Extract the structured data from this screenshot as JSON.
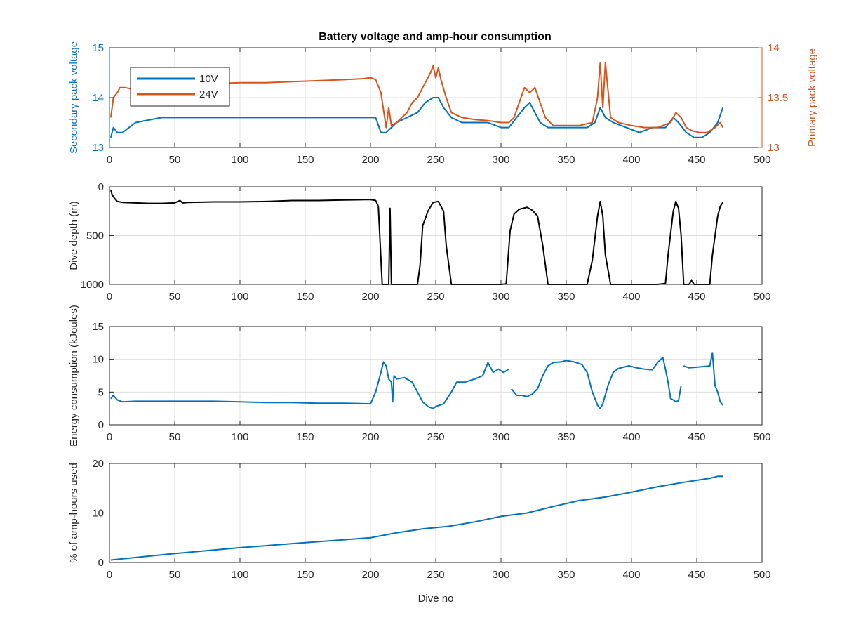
{
  "figure": {
    "title": "Battery voltage and amp-hour consumption"
  },
  "colors": {
    "blue": "#0072BD",
    "orange": "#D95319",
    "black": "#000000"
  },
  "chart_data": [
    {
      "type": "line",
      "title": "Battery voltage and amp-hour consumption",
      "xlabel": "",
      "ylabel": "Secondary pack voltage",
      "ylabel_right": "Primary pack voltage",
      "xlim": [
        0,
        500
      ],
      "ylim": [
        13,
        15
      ],
      "ylim_right": [
        13,
        14
      ],
      "xticks": [
        0,
        50,
        100,
        150,
        200,
        250,
        300,
        350,
        400,
        450,
        500
      ],
      "yticks": [
        13,
        14,
        15
      ],
      "yticks_right": [
        13,
        13.5,
        14
      ],
      "grid": true,
      "legend": "top-left",
      "series": [
        {
          "name": "10V",
          "axis": "left",
          "color": "#0072BD",
          "x": [
            1,
            3,
            6,
            10,
            20,
            40,
            60,
            80,
            100,
            120,
            140,
            160,
            180,
            200,
            204,
            208,
            212,
            216,
            220,
            228,
            236,
            242,
            248,
            252,
            256,
            262,
            270,
            280,
            290,
            300,
            306,
            312,
            318,
            322,
            326,
            330,
            336,
            346,
            356,
            366,
            372,
            376,
            380,
            386,
            396,
            406,
            416,
            426,
            432,
            436,
            442,
            448,
            454,
            460,
            466,
            470
          ],
          "y": [
            13.2,
            13.4,
            13.3,
            13.3,
            13.5,
            13.6,
            13.6,
            13.6,
            13.6,
            13.6,
            13.6,
            13.6,
            13.6,
            13.6,
            13.6,
            13.3,
            13.3,
            13.4,
            13.5,
            13.6,
            13.7,
            13.9,
            14.0,
            14.0,
            13.8,
            13.6,
            13.5,
            13.5,
            13.5,
            13.4,
            13.4,
            13.6,
            13.8,
            13.9,
            13.7,
            13.5,
            13.4,
            13.4,
            13.4,
            13.4,
            13.5,
            13.8,
            13.6,
            13.5,
            13.4,
            13.3,
            13.4,
            13.4,
            13.6,
            13.5,
            13.3,
            13.2,
            13.2,
            13.3,
            13.5,
            13.8
          ]
        },
        {
          "name": "24V",
          "axis": "right",
          "color": "#D95319",
          "x": [
            1,
            3,
            6,
            8,
            12,
            20,
            40,
            50,
            60,
            80,
            100,
            120,
            140,
            160,
            180,
            195,
            200,
            204,
            208,
            212,
            214,
            216,
            220,
            224,
            228,
            232,
            236,
            242,
            246,
            248,
            250,
            252,
            254,
            258,
            262,
            270,
            280,
            290,
            300,
            306,
            310,
            314,
            318,
            322,
            326,
            330,
            334,
            340,
            350,
            360,
            370,
            374,
            376,
            378,
            380,
            384,
            390,
            400,
            410,
            420,
            430,
            434,
            438,
            442,
            446,
            452,
            458,
            464,
            468,
            470
          ],
          "y": [
            13.3,
            13.5,
            13.55,
            13.6,
            13.6,
            13.58,
            13.59,
            13.6,
            13.6,
            13.64,
            13.65,
            13.65,
            13.66,
            13.67,
            13.68,
            13.69,
            13.7,
            13.68,
            13.55,
            13.2,
            13.4,
            13.22,
            13.25,
            13.3,
            13.35,
            13.45,
            13.5,
            13.65,
            13.75,
            13.82,
            13.7,
            13.8,
            13.68,
            13.5,
            13.35,
            13.3,
            13.28,
            13.27,
            13.25,
            13.25,
            13.3,
            13.45,
            13.6,
            13.55,
            13.6,
            13.45,
            13.3,
            13.22,
            13.22,
            13.22,
            13.25,
            13.5,
            13.85,
            13.4,
            13.85,
            13.3,
            13.25,
            13.22,
            13.2,
            13.2,
            13.25,
            13.35,
            13.3,
            13.2,
            13.17,
            13.15,
            13.15,
            13.2,
            13.25,
            13.2
          ]
        }
      ]
    },
    {
      "type": "line",
      "title": "",
      "xlabel": "",
      "ylabel": "Dive depth (m)",
      "xlim": [
        0,
        500
      ],
      "ylim": [
        0,
        1000
      ],
      "y_reversed": true,
      "xticks": [
        0,
        50,
        100,
        150,
        200,
        250,
        300,
        350,
        400,
        450,
        500
      ],
      "yticks": [
        0,
        500,
        1000
      ],
      "grid": true,
      "series": [
        {
          "color": "#000000",
          "x": [
            1,
            2,
            4,
            6,
            10,
            20,
            30,
            40,
            50,
            54,
            56,
            60,
            80,
            100,
            120,
            140,
            160,
            180,
            200,
            204,
            206,
            209,
            212,
            214,
            215,
            216,
            218,
            220,
            236,
            238,
            240,
            244,
            248,
            252,
            256,
            258,
            262,
            300,
            304,
            307,
            310,
            314,
            320,
            324,
            328,
            332,
            336,
            340,
            350,
            360,
            366,
            370,
            374,
            376,
            378,
            380,
            384,
            390,
            400,
            410,
            420,
            426,
            428,
            432,
            434,
            436,
            438,
            440,
            444,
            446,
            448,
            450,
            460,
            462,
            466,
            468,
            470
          ],
          "y": [
            30,
            80,
            120,
            150,
            160,
            165,
            170,
            170,
            165,
            140,
            165,
            160,
            155,
            155,
            150,
            140,
            140,
            135,
            130,
            140,
            200,
            1000,
            1000,
            1000,
            220,
            1000,
            1000,
            1000,
            1000,
            800,
            400,
            250,
            160,
            150,
            250,
            600,
            1000,
            1000,
            995,
            450,
            280,
            230,
            210,
            240,
            300,
            600,
            1000,
            1000,
            1000,
            1000,
            1000,
            750,
            300,
            150,
            300,
            700,
            1000,
            1000,
            1000,
            1000,
            1000,
            990,
            700,
            250,
            150,
            220,
            500,
            1000,
            1000,
            960,
            1000,
            1000,
            1000,
            700,
            300,
            200,
            160
          ]
        }
      ]
    },
    {
      "type": "line",
      "title": "",
      "xlabel": "",
      "ylabel": "Energy consumption (kJoules)",
      "xlim": [
        0,
        500
      ],
      "ylim": [
        0,
        15
      ],
      "xticks": [
        0,
        50,
        100,
        150,
        200,
        250,
        300,
        350,
        400,
        450,
        500
      ],
      "yticks": [
        0,
        5,
        10,
        15
      ],
      "grid": true,
      "series": [
        {
          "color": "#0072BD",
          "segments": [
            {
              "x": [
                1,
                3,
                6,
                10,
                20,
                40,
                60,
                80,
                100,
                120,
                140,
                160,
                180,
                200,
                204,
                208,
                210,
                212,
                214,
                216,
                217,
                218,
                220,
                226,
                232,
                236,
                240,
                244,
                248,
                250,
                256,
                262,
                266,
                272,
                280,
                286,
                290,
                294,
                298,
                302,
                306
              ],
              "y": [
                4.0,
                4.5,
                3.8,
                3.5,
                3.6,
                3.6,
                3.6,
                3.6,
                3.5,
                3.4,
                3.4,
                3.3,
                3.3,
                3.2,
                5.0,
                8.0,
                9.6,
                9.0,
                7.0,
                6.5,
                3.5,
                7.5,
                7.0,
                7.2,
                6.5,
                5.0,
                3.5,
                2.8,
                2.5,
                2.8,
                3.2,
                5.0,
                6.5,
                6.5,
                7.0,
                7.5,
                9.5,
                8.0,
                8.5,
                8.0,
                8.5
              ]
            },
            {
              "x": [
                308,
                312,
                316,
                320,
                324,
                328,
                332,
                336,
                340,
                346,
                350,
                356,
                362,
                366,
                370,
                374,
                376,
                378,
                382,
                386,
                390,
                398,
                404,
                410,
                416,
                420,
                424,
                426,
                428,
                430,
                432,
                434,
                436,
                438
              ],
              "y": [
                5.5,
                4.5,
                4.5,
                4.3,
                4.7,
                5.5,
                7.5,
                9.0,
                9.5,
                9.6,
                9.8,
                9.6,
                9.2,
                8.0,
                5.0,
                3.0,
                2.5,
                3.2,
                6.0,
                8.0,
                8.6,
                9.0,
                8.7,
                8.5,
                8.4,
                9.5,
                10.3,
                8.5,
                6.5,
                4.0,
                3.8,
                3.5,
                3.7,
                6.0
              ]
            },
            {
              "x": [
                440,
                444,
                450,
                456,
                460,
                462,
                464,
                466,
                468,
                470
              ],
              "y": [
                9.0,
                8.7,
                8.8,
                8.9,
                9.0,
                11.0,
                6.0,
                5.0,
                3.5,
                3.0
              ]
            }
          ]
        }
      ]
    },
    {
      "type": "line",
      "title": "",
      "xlabel": "Dive no",
      "ylabel": "% of amp-hours used",
      "xlim": [
        0,
        500
      ],
      "ylim": [
        0,
        20
      ],
      "xticks": [
        0,
        50,
        100,
        150,
        200,
        250,
        300,
        350,
        400,
        450,
        500
      ],
      "yticks": [
        0,
        10,
        20
      ],
      "grid": true,
      "series": [
        {
          "color": "#0072BD",
          "x": [
            1,
            50,
            100,
            150,
            200,
            220,
            240,
            260,
            280,
            300,
            320,
            340,
            360,
            380,
            400,
            420,
            440,
            460,
            466,
            470
          ],
          "y": [
            0.5,
            1.8,
            3.0,
            4.0,
            5.0,
            6.0,
            6.8,
            7.3,
            8.2,
            9.3,
            10.0,
            11.3,
            12.5,
            13.2,
            14.2,
            15.3,
            16.2,
            17.0,
            17.4,
            17.4
          ]
        }
      ]
    }
  ]
}
